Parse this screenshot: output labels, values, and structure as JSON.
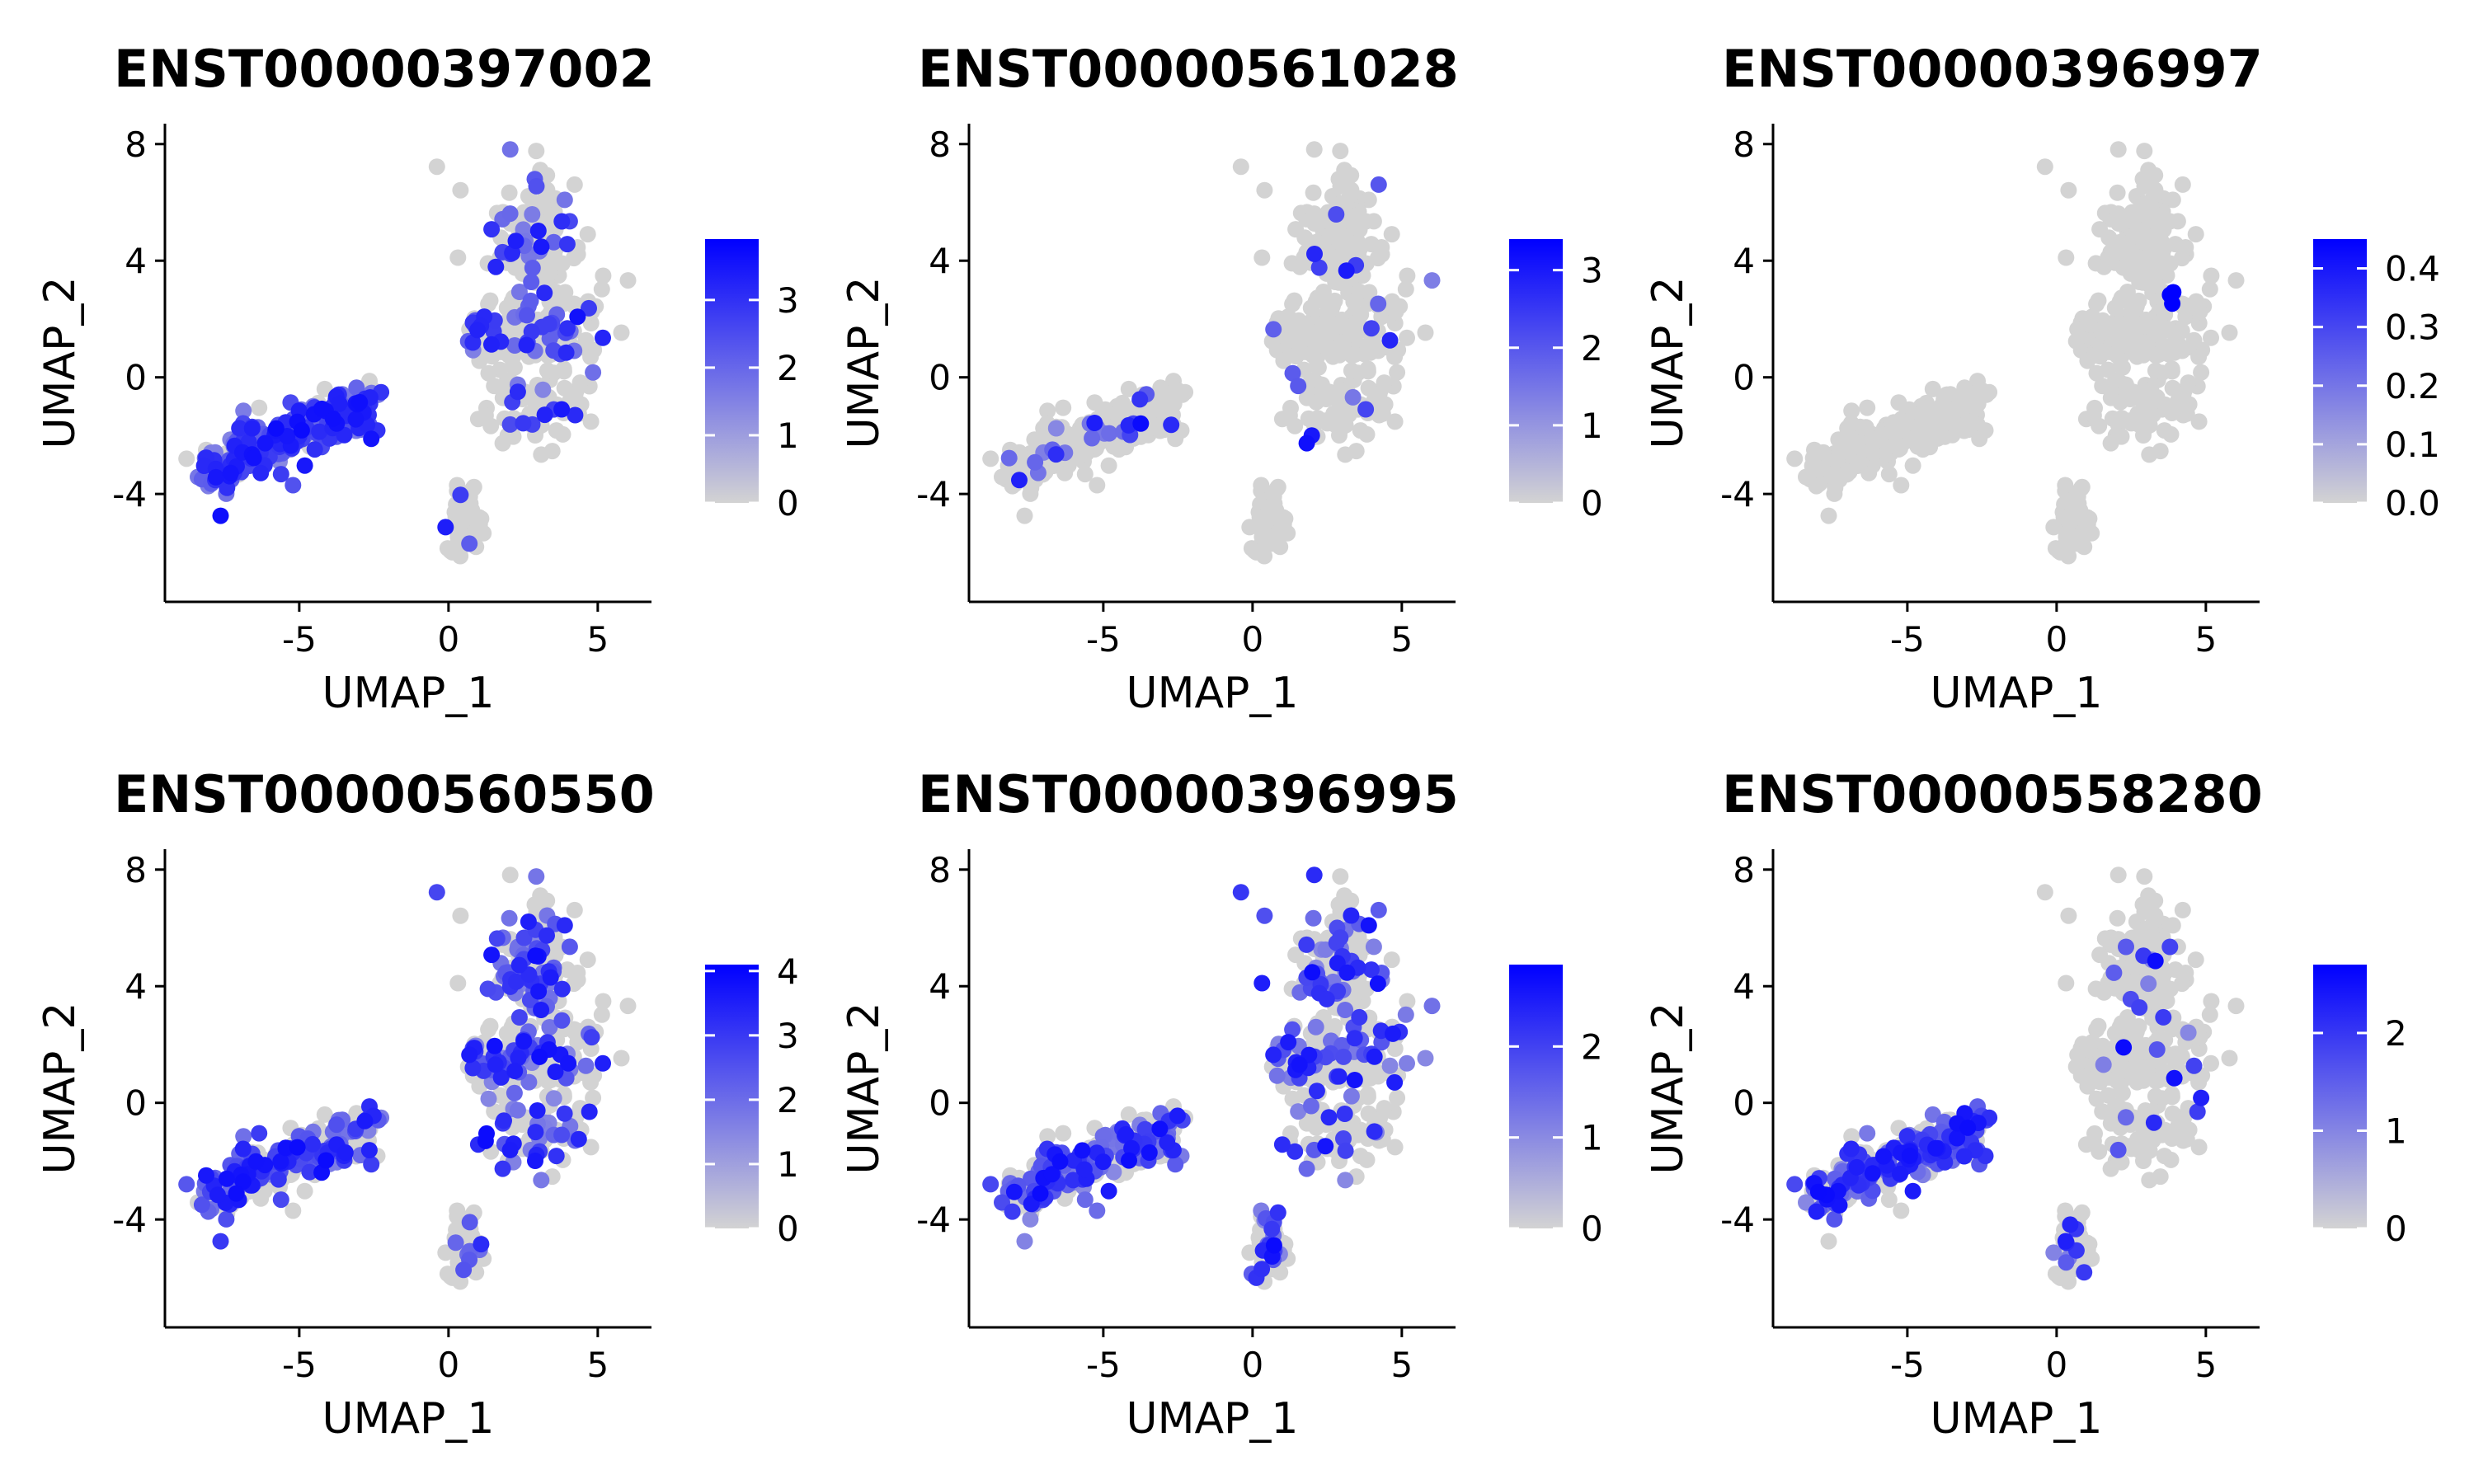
{
  "figure": {
    "background": "#ffffff",
    "low_color": "#d3d3d3",
    "high_color": "#0000ff"
  },
  "chart_data": [
    {
      "type": "scatter",
      "title": "ENST00000397002",
      "xlabel": "UMAP_1",
      "ylabel": "UMAP_2",
      "xlim": [
        -9.5,
        6.8
      ],
      "ylim": [
        -7.7,
        8.7
      ],
      "xticks": [
        -5,
        0,
        5
      ],
      "yticks": [
        -4,
        0,
        4,
        8
      ],
      "grid": false,
      "legend": {
        "position": "right",
        "type": "colorbar",
        "min": 0,
        "max": 3.9,
        "ticks": [
          0,
          1,
          2,
          3
        ]
      },
      "expression_level_by_cluster": {
        "left": 0.85,
        "right": 0.25,
        "bottom": 0.05
      }
    },
    {
      "type": "scatter",
      "title": "ENST00000561028",
      "xlabel": "UMAP_1",
      "ylabel": "UMAP_2",
      "xlim": [
        -9.5,
        6.8
      ],
      "ylim": [
        -7.7,
        8.7
      ],
      "xticks": [
        -5,
        0,
        5
      ],
      "yticks": [
        -4,
        0,
        4,
        8
      ],
      "grid": false,
      "legend": {
        "position": "right",
        "type": "colorbar",
        "min": 0,
        "max": 3.4,
        "ticks": [
          0,
          1,
          2,
          3
        ]
      },
      "expression_level_by_cluster": {
        "left": 0.12,
        "right": 0.07,
        "bottom": 0.04
      }
    },
    {
      "type": "scatter",
      "title": "ENST00000396997",
      "xlabel": "UMAP_1",
      "ylabel": "UMAP_2",
      "xlim": [
        -9.5,
        6.8
      ],
      "ylim": [
        -7.7,
        8.7
      ],
      "xticks": [
        -5,
        0,
        5
      ],
      "yticks": [
        -4,
        0,
        4,
        8
      ],
      "grid": false,
      "legend": {
        "position": "right",
        "type": "colorbar",
        "min": 0.0,
        "max": 0.45,
        "ticks": [
          "0.0",
          "0.1",
          "0.2",
          "0.3",
          "0.4"
        ]
      },
      "expression_level_by_cluster": {
        "left": 0.0,
        "right": 0.0,
        "bottom": 0.0
      }
    },
    {
      "type": "scatter",
      "title": "ENST00000560550",
      "xlabel": "UMAP_1",
      "ylabel": "UMAP_2",
      "xlim": [
        -9.5,
        6.8
      ],
      "ylim": [
        -7.7,
        8.7
      ],
      "xticks": [
        -5,
        0,
        5
      ],
      "yticks": [
        -4,
        0,
        4,
        8
      ],
      "grid": false,
      "legend": {
        "position": "right",
        "type": "colorbar",
        "min": 0,
        "max": 4.1,
        "ticks": [
          0,
          1,
          2,
          3,
          4
        ]
      },
      "expression_level_by_cluster": {
        "left": 0.55,
        "right": 0.45,
        "bottom": 0.2
      }
    },
    {
      "type": "scatter",
      "title": "ENST00000396995",
      "xlabel": "UMAP_1",
      "ylabel": "UMAP_2",
      "xlim": [
        -9.5,
        6.8
      ],
      "ylim": [
        -7.7,
        8.7
      ],
      "xticks": [
        -5,
        0,
        5
      ],
      "yticks": [
        -4,
        0,
        4,
        8
      ],
      "grid": false,
      "legend": {
        "position": "right",
        "type": "colorbar",
        "min": 0,
        "max": 2.9,
        "ticks": [
          0,
          1,
          2
        ]
      },
      "expression_level_by_cluster": {
        "left": 0.5,
        "right": 0.3,
        "bottom": 0.2
      }
    },
    {
      "type": "scatter",
      "title": "ENST00000558280",
      "xlabel": "UMAP_1",
      "ylabel": "UMAP_2",
      "xlim": [
        -9.5,
        6.8
      ],
      "ylim": [
        -7.7,
        8.7
      ],
      "xticks": [
        -5,
        0,
        5
      ],
      "yticks": [
        -4,
        0,
        4,
        8
      ],
      "grid": false,
      "legend": {
        "position": "right",
        "type": "colorbar",
        "min": 0,
        "max": 2.7,
        "ticks": [
          0,
          1,
          2
        ]
      },
      "expression_level_by_cluster": {
        "left": 0.6,
        "right": 0.1,
        "bottom": 0.15
      }
    }
  ]
}
